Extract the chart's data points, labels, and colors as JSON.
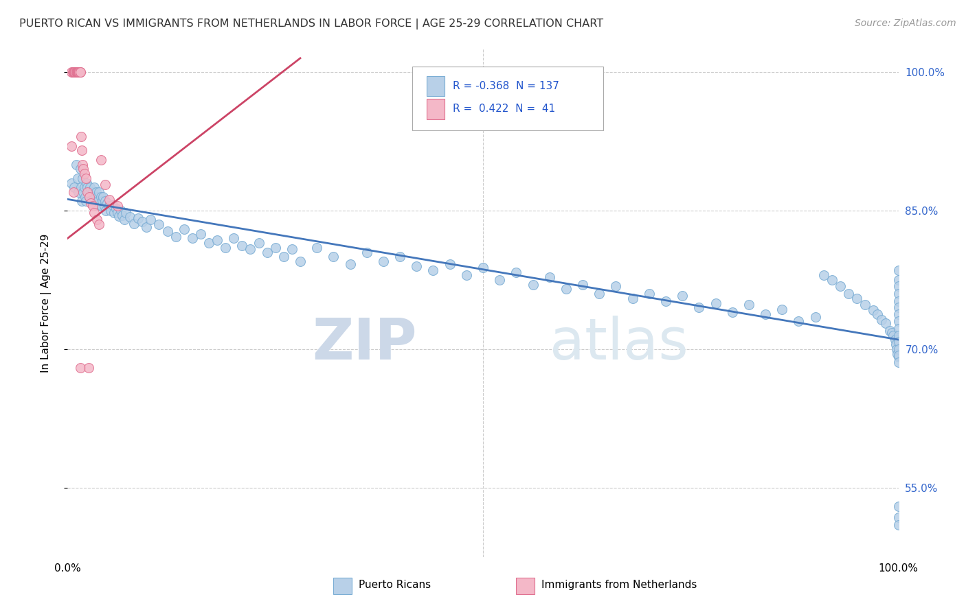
{
  "title": "PUERTO RICAN VS IMMIGRANTS FROM NETHERLANDS IN LABOR FORCE | AGE 25-29 CORRELATION CHART",
  "source": "Source: ZipAtlas.com",
  "ylabel": "In Labor Force | Age 25-29",
  "right_yticks": [
    0.55,
    0.7,
    0.85,
    1.0
  ],
  "right_yticklabels": [
    "55.0%",
    "70.0%",
    "85.0%",
    "100.0%"
  ],
  "legend_blue_r": "-0.368",
  "legend_blue_n": "137",
  "legend_pink_r": "0.422",
  "legend_pink_n": "41",
  "legend_blue_label": "Puerto Ricans",
  "legend_pink_label": "Immigrants from Netherlands",
  "watermark_zip": "ZIP",
  "watermark_atlas": "atlas",
  "blue_color": "#b8d0e8",
  "blue_edge": "#7aadd4",
  "pink_color": "#f4b8c8",
  "pink_edge": "#e07090",
  "blue_line_color": "#4477bb",
  "pink_line_color": "#cc4466",
  "xlim": [
    0.0,
    1.0
  ],
  "ylim": [
    0.475,
    1.025
  ],
  "figsize": [
    14.06,
    8.92
  ],
  "dpi": 100,
  "blue_scatter_x": [
    0.005,
    0.008,
    0.01,
    0.012,
    0.013,
    0.015,
    0.016,
    0.017,
    0.018,
    0.019,
    0.02,
    0.021,
    0.022,
    0.023,
    0.024,
    0.025,
    0.026,
    0.027,
    0.028,
    0.03,
    0.031,
    0.032,
    0.033,
    0.034,
    0.035,
    0.036,
    0.037,
    0.038,
    0.04,
    0.041,
    0.042,
    0.043,
    0.044,
    0.045,
    0.046,
    0.048,
    0.05,
    0.052,
    0.054,
    0.056,
    0.058,
    0.06,
    0.062,
    0.064,
    0.066,
    0.068,
    0.07,
    0.075,
    0.08,
    0.085,
    0.09,
    0.095,
    0.1,
    0.11,
    0.12,
    0.13,
    0.14,
    0.15,
    0.16,
    0.17,
    0.18,
    0.19,
    0.2,
    0.21,
    0.22,
    0.23,
    0.24,
    0.25,
    0.26,
    0.27,
    0.28,
    0.3,
    0.32,
    0.34,
    0.36,
    0.38,
    0.4,
    0.42,
    0.44,
    0.46,
    0.48,
    0.5,
    0.52,
    0.54,
    0.56,
    0.58,
    0.6,
    0.62,
    0.64,
    0.66,
    0.68,
    0.7,
    0.72,
    0.74,
    0.76,
    0.78,
    0.8,
    0.82,
    0.84,
    0.86,
    0.88,
    0.9,
    0.91,
    0.92,
    0.93,
    0.94,
    0.95,
    0.96,
    0.97,
    0.975,
    0.98,
    0.985,
    0.99,
    0.992,
    0.994,
    0.996,
    0.997,
    0.998,
    0.999,
    1.0,
    1.0,
    1.0,
    1.0,
    1.0,
    1.0,
    1.0,
    1.0,
    1.0,
    1.0,
    1.0,
    1.0,
    1.0,
    1.0,
    1.0,
    1.0,
    1.0,
    1.0
  ],
  "blue_scatter_y": [
    0.88,
    0.875,
    0.9,
    0.885,
    0.87,
    0.895,
    0.875,
    0.86,
    0.885,
    0.87,
    0.875,
    0.865,
    0.86,
    0.88,
    0.875,
    0.87,
    0.865,
    0.875,
    0.86,
    0.87,
    0.865,
    0.875,
    0.86,
    0.87,
    0.855,
    0.865,
    0.86,
    0.87,
    0.865,
    0.855,
    0.86,
    0.865,
    0.855,
    0.86,
    0.85,
    0.858,
    0.855,
    0.85,
    0.856,
    0.848,
    0.852,
    0.848,
    0.844,
    0.85,
    0.845,
    0.84,
    0.848,
    0.843,
    0.836,
    0.842,
    0.838,
    0.832,
    0.84,
    0.835,
    0.828,
    0.822,
    0.83,
    0.82,
    0.825,
    0.815,
    0.818,
    0.81,
    0.82,
    0.812,
    0.808,
    0.815,
    0.805,
    0.81,
    0.8,
    0.808,
    0.795,
    0.81,
    0.8,
    0.792,
    0.805,
    0.795,
    0.8,
    0.79,
    0.785,
    0.792,
    0.78,
    0.788,
    0.775,
    0.783,
    0.77,
    0.778,
    0.765,
    0.77,
    0.76,
    0.768,
    0.755,
    0.76,
    0.752,
    0.758,
    0.745,
    0.75,
    0.74,
    0.748,
    0.738,
    0.743,
    0.73,
    0.735,
    0.78,
    0.775,
    0.768,
    0.76,
    0.755,
    0.748,
    0.742,
    0.738,
    0.732,
    0.728,
    0.72,
    0.718,
    0.715,
    0.71,
    0.705,
    0.7,
    0.695,
    0.692,
    0.785,
    0.775,
    0.768,
    0.76,
    0.752,
    0.745,
    0.738,
    0.73,
    0.722,
    0.715,
    0.708,
    0.7,
    0.693,
    0.686,
    0.53,
    0.518,
    0.51
  ],
  "pink_scatter_x": [
    0.005,
    0.006,
    0.007,
    0.008,
    0.008,
    0.009,
    0.009,
    0.01,
    0.01,
    0.011,
    0.011,
    0.012,
    0.012,
    0.012,
    0.013,
    0.013,
    0.014,
    0.014,
    0.015,
    0.015,
    0.016,
    0.017,
    0.018,
    0.019,
    0.02,
    0.022,
    0.024,
    0.026,
    0.028,
    0.03,
    0.032,
    0.035,
    0.038,
    0.04,
    0.045,
    0.05,
    0.06,
    0.005,
    0.007,
    0.015,
    0.025
  ],
  "pink_scatter_y": [
    1.0,
    1.0,
    1.0,
    1.0,
    1.0,
    1.0,
    1.0,
    1.0,
    1.0,
    1.0,
    1.0,
    1.0,
    1.0,
    1.0,
    1.0,
    1.0,
    1.0,
    1.0,
    1.0,
    1.0,
    0.93,
    0.915,
    0.9,
    0.895,
    0.89,
    0.885,
    0.87,
    0.865,
    0.858,
    0.855,
    0.848,
    0.84,
    0.835,
    0.905,
    0.878,
    0.862,
    0.855,
    0.92,
    0.87,
    0.68,
    0.68
  ],
  "pink_line_x0": 0.0,
  "pink_line_y0": 0.82,
  "pink_line_x1": 0.28,
  "pink_line_y1": 1.015
}
